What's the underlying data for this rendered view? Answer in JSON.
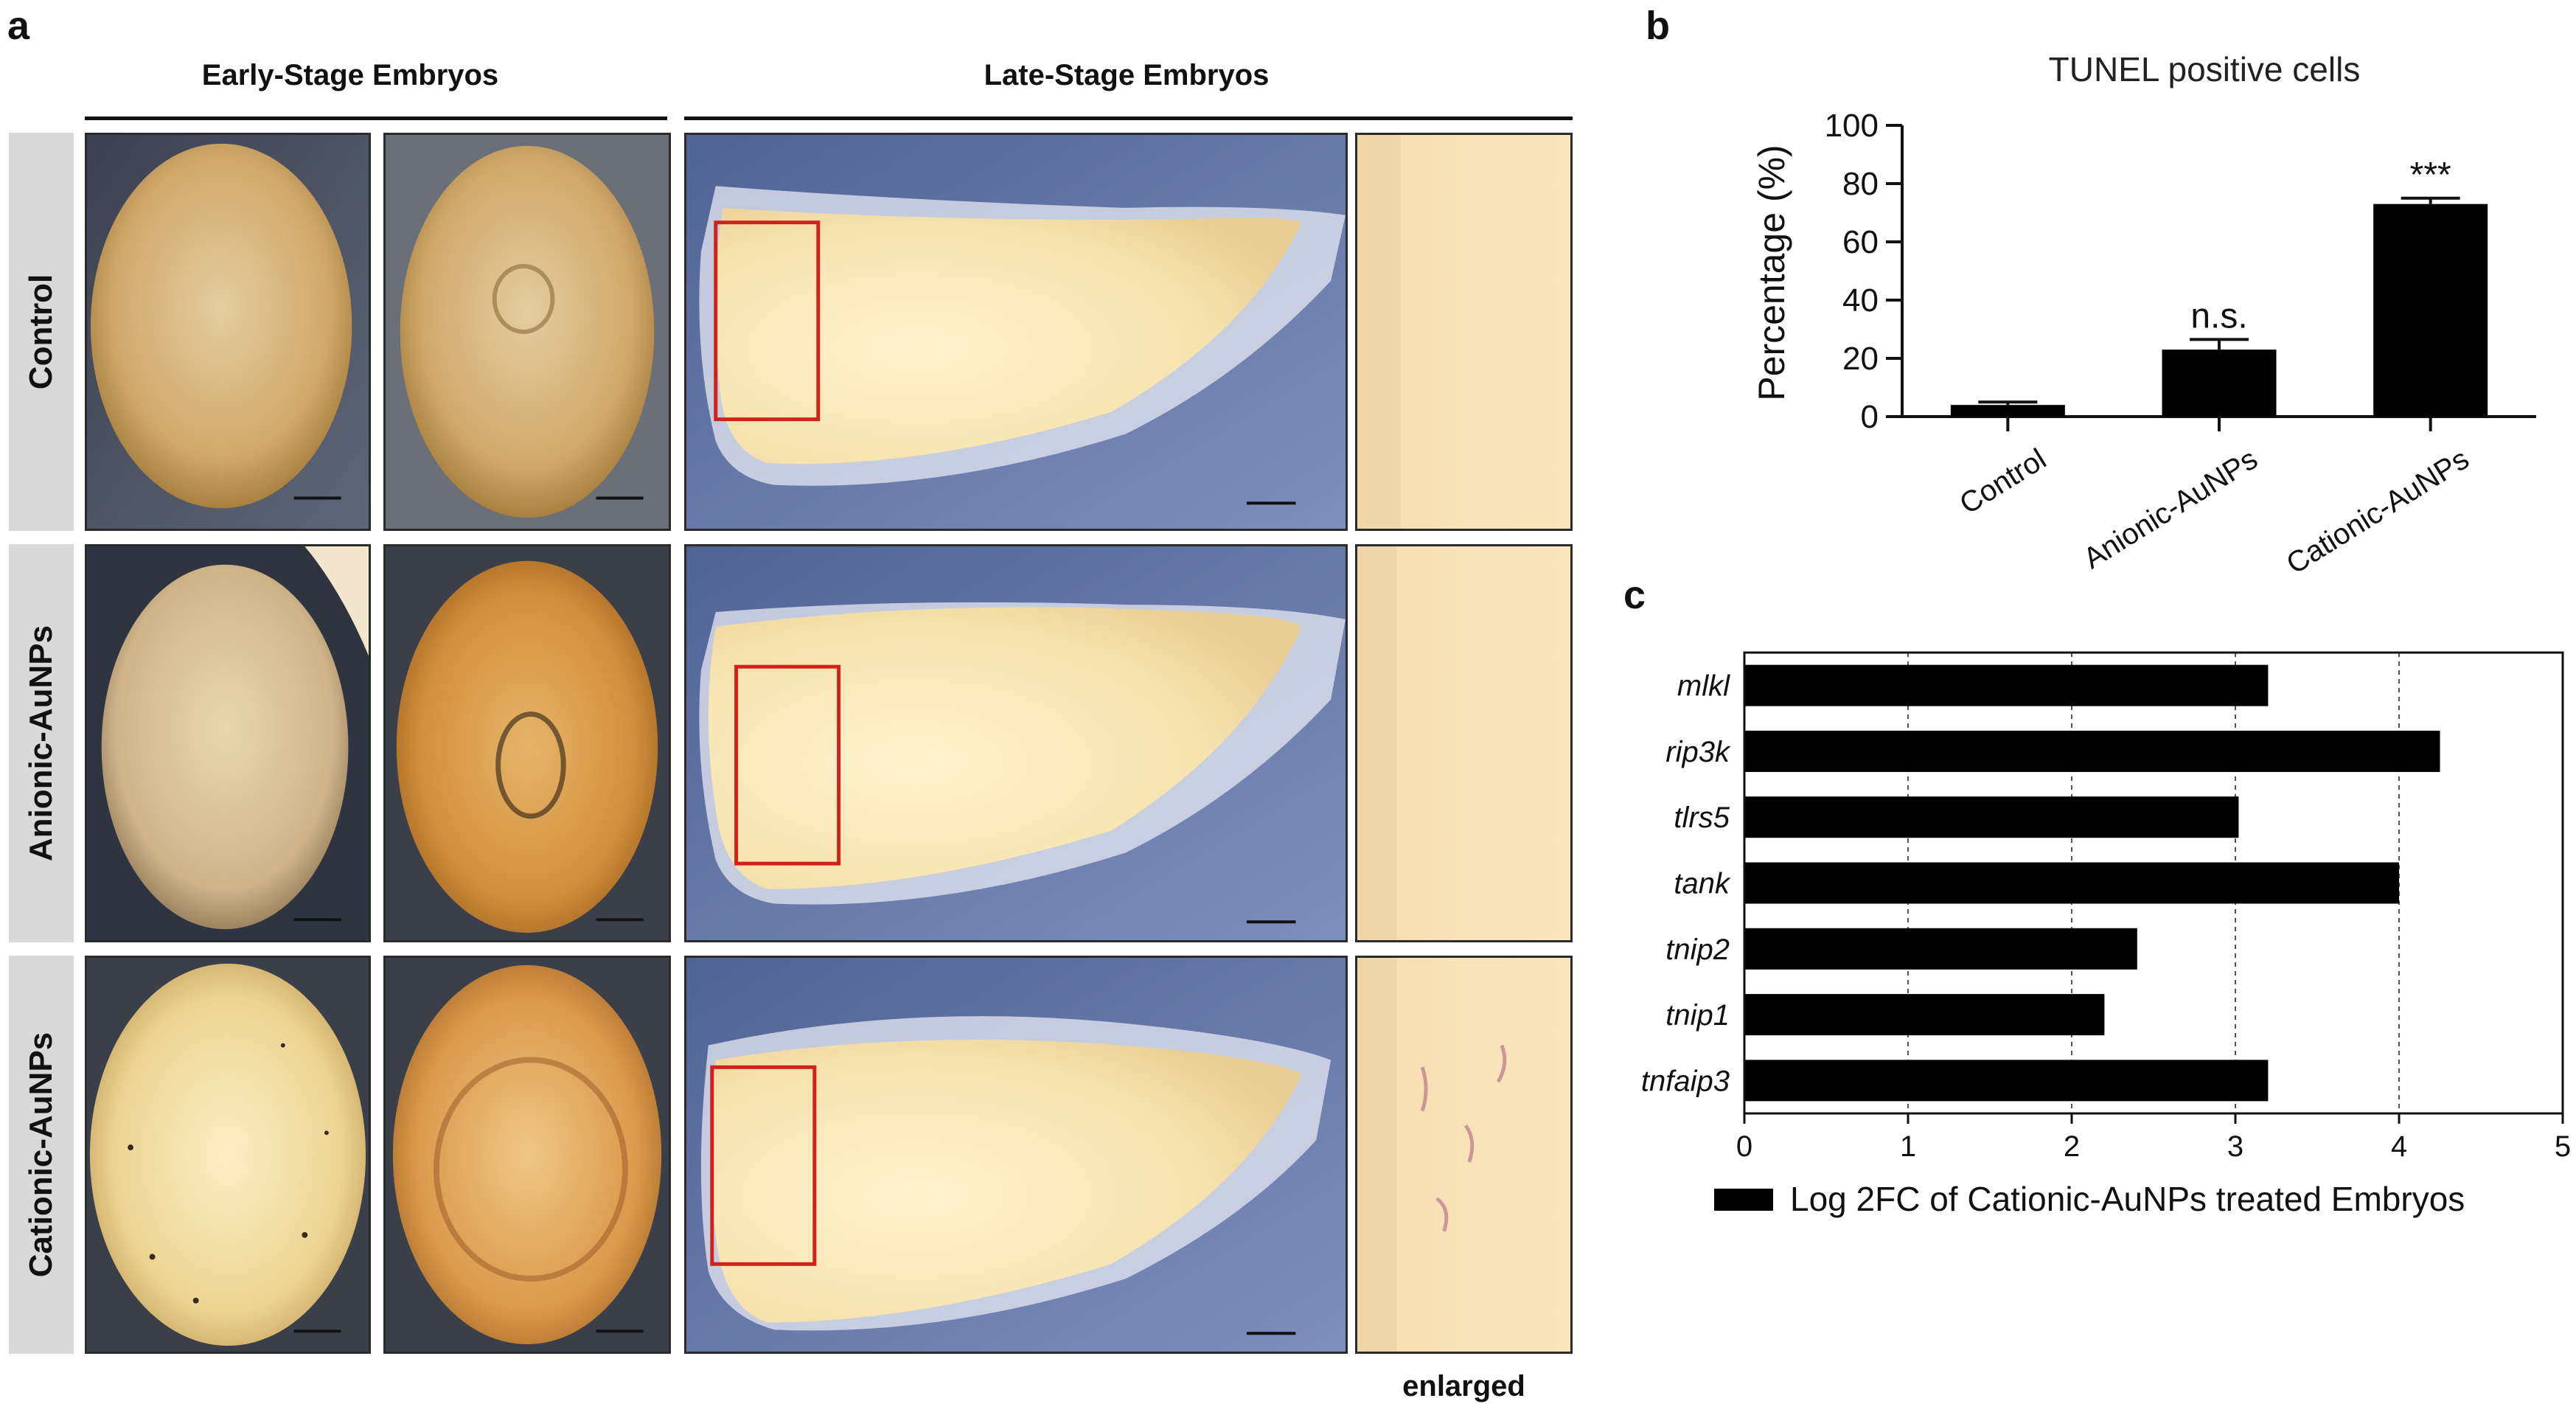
{
  "panel_a": {
    "letter": "a",
    "header_early": "Early-Stage Embryos",
    "header_late": "Late-Stage Embryos",
    "rows": [
      "Control",
      "Anionic-AuNPs",
      "Cationic-AuNPs"
    ],
    "enlarged_label": "enlarged"
  },
  "panel_b": {
    "letter": "b"
  },
  "panel_c": {
    "letter": "c"
  },
  "chart_data": [
    {
      "type": "bar",
      "title": "TUNEL positive cells",
      "ylabel": "Percentage (%)",
      "xlabel": "",
      "categories": [
        "Control",
        "Anionic-AuNPs",
        "Cationic-AuNPs"
      ],
      "values": [
        4,
        23,
        73
      ],
      "errors": [
        1,
        3.5,
        2
      ],
      "annotations": [
        "",
        "n.s.",
        "***"
      ],
      "ylim": [
        0,
        100
      ],
      "yticks": [
        0,
        20,
        40,
        60,
        80,
        100
      ],
      "bar_color": "#000000",
      "grid": false
    },
    {
      "type": "bar",
      "orientation": "horizontal",
      "categories": [
        "mlkl",
        "rip3k",
        "tlrs5",
        "tank",
        "tnip2",
        "tnip1",
        "tnfaip3"
      ],
      "values": [
        3.2,
        4.25,
        3.02,
        4.0,
        2.4,
        2.2,
        3.2
      ],
      "xlim": [
        0,
        5
      ],
      "xticks": [
        0,
        1,
        2,
        3,
        4,
        5
      ],
      "legend": "Log 2FC of Cationic-AuNPs treated Embryos",
      "legend_position": "bottom",
      "bar_color": "#000000",
      "grid": true
    }
  ]
}
